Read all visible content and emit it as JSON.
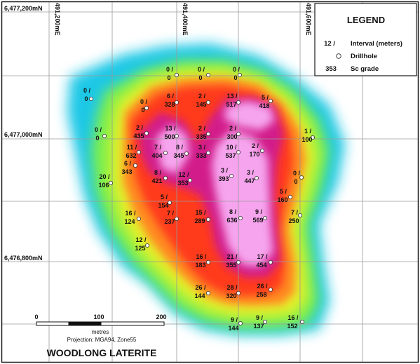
{
  "map": {
    "title": "WOODLONG LATERITE",
    "projection": "Projection: MGA94, Zone55",
    "northings": [
      "6,477,200mN",
      "6,477,000mN",
      "6,476,800mN"
    ],
    "eastings": [
      "491,200mE",
      "491,400mE",
      "491,600mE"
    ],
    "scale_bar": {
      "labels": [
        "0",
        "100",
        "200"
      ],
      "unit": "metres"
    },
    "legend": {
      "title": "LEGEND",
      "entries": [
        {
          "symbol": "12 /",
          "label": "Interval (meters)"
        },
        {
          "symbol": "drillhole-symbol",
          "label": "Drillhole"
        },
        {
          "symbol": "353",
          "label": "Sc grade"
        }
      ]
    },
    "colors": {
      "frame": "#1a1a1a",
      "gridline": "#9a9a9a",
      "grade_ramp": [
        "#1ec8e6",
        "#3fd896",
        "#7ff04a",
        "#e6f02a",
        "#ffc22a",
        "#ff8a22",
        "#ff3a1c",
        "#e8103a",
        "#d21a8a",
        "#ee5fd8",
        "#f6a4ee"
      ]
    },
    "drillholes": [
      {
        "interval": "0 /",
        "grade": "0"
      },
      {
        "interval": "0 /",
        "grade": "0"
      },
      {
        "interval": "0 /",
        "grade": "0"
      },
      {
        "interval": "0 /",
        "grade": "0"
      },
      {
        "interval": "6 /",
        "grade": "328"
      },
      {
        "interval": "2 /",
        "grade": "145"
      },
      {
        "interval": "13 /",
        "grade": "517"
      },
      {
        "interval": "5 /",
        "grade": "418"
      },
      {
        "interval": "0 /",
        "grade": "0"
      },
      {
        "interval": "0 /",
        "grade": "0"
      },
      {
        "interval": "2 /",
        "grade": "435"
      },
      {
        "interval": "13 /",
        "grade": "500"
      },
      {
        "interval": "2 /",
        "grade": "335"
      },
      {
        "interval": "2 /",
        "grade": "300"
      },
      {
        "interval": "1 /",
        "grade": "100"
      },
      {
        "interval": "11 /",
        "grade": "632"
      },
      {
        "interval": "7 /",
        "grade": "404"
      },
      {
        "interval": "8 /",
        "grade": "345"
      },
      {
        "interval": "3 /",
        "grade": "333"
      },
      {
        "interval": "10 /",
        "grade": "537"
      },
      {
        "interval": "2 /",
        "grade": "170"
      },
      {
        "interval": "6 /",
        "grade": "343"
      },
      {
        "interval": "20 /",
        "grade": "106"
      },
      {
        "interval": "8 /",
        "grade": "421"
      },
      {
        "interval": "12 /",
        "grade": "353"
      },
      {
        "interval": "3 /",
        "grade": "393"
      },
      {
        "interval": "3 /",
        "grade": "447"
      },
      {
        "interval": "0 /",
        "grade": "0"
      },
      {
        "interval": "5 /",
        "grade": "154"
      },
      {
        "interval": "5 /",
        "grade": "160"
      },
      {
        "interval": "16 /",
        "grade": "124"
      },
      {
        "interval": "7 /",
        "grade": "237"
      },
      {
        "interval": "15 /",
        "grade": "289"
      },
      {
        "interval": "8 /",
        "grade": "636"
      },
      {
        "interval": "9 /",
        "grade": "569"
      },
      {
        "interval": "7 /",
        "grade": "250"
      },
      {
        "interval": "12 /",
        "grade": "125"
      },
      {
        "interval": "16 /",
        "grade": "183"
      },
      {
        "interval": "21 /",
        "grade": "355"
      },
      {
        "interval": "17 /",
        "grade": "454"
      },
      {
        "interval": "26 /",
        "grade": "144"
      },
      {
        "interval": "28 /",
        "grade": "320"
      },
      {
        "interval": "26 /",
        "grade": "258"
      },
      {
        "interval": "9 /",
        "grade": "144"
      },
      {
        "interval": "9 /",
        "grade": "137"
      },
      {
        "interval": "16 /",
        "grade": "152"
      }
    ]
  }
}
